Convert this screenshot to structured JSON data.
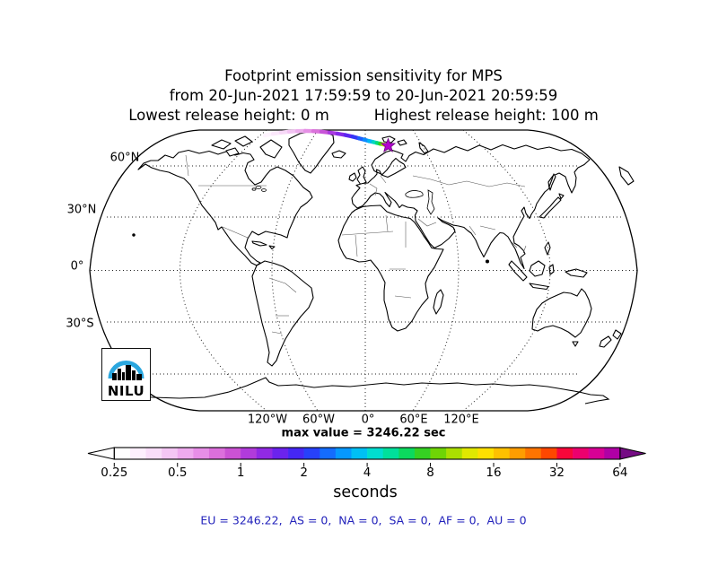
{
  "header": {
    "title": "Footprint emission sensitivity for MPS",
    "date_range": "from 20-Jun-2021 17:59:59 to 20-Jun-2021 20:59:59",
    "release_low": "Lowest release height: 0 m",
    "release_high": "Highest release height: 100 m"
  },
  "map": {
    "lat_labels": [
      "60°N",
      "30°N",
      "0°",
      "30°S"
    ],
    "lon_labels": [
      "120°W",
      "60°W",
      "0°",
      "60°E",
      "120°E"
    ],
    "caption": "max value = 3246.22 sec"
  },
  "logo": {
    "text": "NILU",
    "arc_color": "#2ba7df"
  },
  "colorbar": {
    "ticks": [
      "0.25",
      "0.5",
      "1",
      "2",
      "4",
      "8",
      "16",
      "32",
      "64"
    ],
    "unit_label": "seconds",
    "left_arrow_color": "#ffffff",
    "right_arrow_color": "#750c84",
    "segment_colors": [
      "#ffffff",
      "#fdeffd",
      "#f9ddf9",
      "#f4c6f4",
      "#eeaaee",
      "#e78ee7",
      "#dc6fdc",
      "#cb52d4",
      "#b13bdb",
      "#9129e4",
      "#6b23ed",
      "#4527f4",
      "#2741fa",
      "#146cfe",
      "#0698ff",
      "#00c0f4",
      "#00ddd0",
      "#00e09b",
      "#0cd95e",
      "#35d122",
      "#6fd505",
      "#abdf00",
      "#e0e800",
      "#ffe000",
      "#ffc100",
      "#ff9d00",
      "#ff7400",
      "#ff4700",
      "#f8073a",
      "#ec006e",
      "#d80095",
      "#b000a5"
    ]
  },
  "footer": {
    "region_values": "EU = 3246.22,  AS = 0,  NA = 0,  SA = 0,  AF = 0,  AU = 0",
    "color": "#2222bb"
  },
  "chart_data": {
    "type": "heatmap",
    "title": "Footprint emission sensitivity for MPS",
    "station": "MPS",
    "time_start": "20-Jun-2021 17:59:59",
    "time_end": "20-Jun-2021 20:59:59",
    "lowest_release_height_m": 0,
    "highest_release_height_m": 100,
    "max_value_sec": 3246.22,
    "unit": "seconds",
    "scale": "log2",
    "colorbar_ticks": [
      0.25,
      0.5,
      1,
      2,
      4,
      8,
      16,
      32,
      64
    ],
    "region_totals": {
      "EU": 3246.22,
      "AS": 0,
      "NA": 0,
      "SA": 0,
      "AF": 0,
      "AU": 0
    },
    "graticule": {
      "latitudes_deg": [
        60,
        30,
        0,
        -30,
        -60
      ],
      "longitudes_deg": [
        -120,
        -60,
        0,
        60,
        120
      ]
    },
    "projection": "robinson-like",
    "release_location_approx": {
      "lat": 78,
      "lon": 18
    },
    "trajectory": {
      "points": [
        [
          295,
          151
        ],
        [
          304,
          149.2
        ],
        [
          313,
          147.8
        ],
        [
          322,
          146.8
        ],
        [
          331,
          146.2
        ],
        [
          340,
          146
        ],
        [
          349,
          146.2
        ],
        [
          358,
          146.8
        ],
        [
          367,
          147.8
        ],
        [
          376,
          149
        ],
        [
          385,
          150.6
        ],
        [
          393,
          152.4
        ],
        [
          400,
          154.2
        ],
        [
          406,
          155.8
        ],
        [
          411,
          157.2
        ],
        [
          416,
          158.4
        ],
        [
          420,
          159.4
        ],
        [
          423.5,
          160.2
        ],
        [
          426.5,
          160.9
        ],
        [
          429,
          161.5
        ],
        [
          431,
          162
        ],
        [
          432.5,
          162.3
        ]
      ],
      "segment_colors": [
        "#fef4fe",
        "#fbe8fb",
        "#f7d8f7",
        "#f2c3f2",
        "#ecabec",
        "#e590e5",
        "#db72db",
        "#c854d8",
        "#a93ae0",
        "#8429e8",
        "#5b25f0",
        "#3336f7",
        "#1b60fc",
        "#0b8cff",
        "#00b5f5",
        "#00d6c0",
        "#00dc7a",
        "#38d117",
        "#c8e400",
        "#ffd000",
        "#ff6a00"
      ]
    }
  }
}
